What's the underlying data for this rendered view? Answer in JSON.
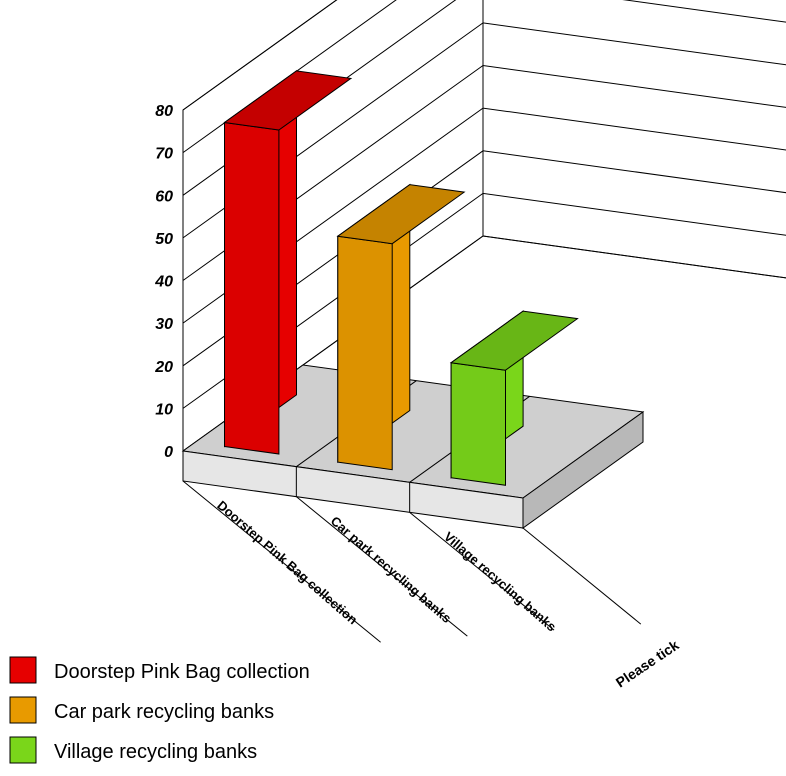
{
  "chart_data": {
    "type": "bar",
    "style": "3d",
    "xlabel": "Please tick",
    "ylabel": "",
    "title": "",
    "ylim": [
      0,
      80
    ],
    "yticks": [
      0,
      10,
      20,
      30,
      40,
      50,
      60,
      70,
      80
    ],
    "categories": [
      "Doorstep Pink Bag collection",
      "Car park recycling banks",
      "Village recycling banks"
    ],
    "values": [
      76,
      53,
      27
    ],
    "colors": [
      "#e60000",
      "#e89a00",
      "#7ad61a"
    ],
    "grid": true,
    "legend": {
      "position": "bottom-left",
      "entries": [
        "Doorstep Pink Bag collection",
        "Car park recycling banks",
        "Village recycling banks"
      ]
    }
  }
}
